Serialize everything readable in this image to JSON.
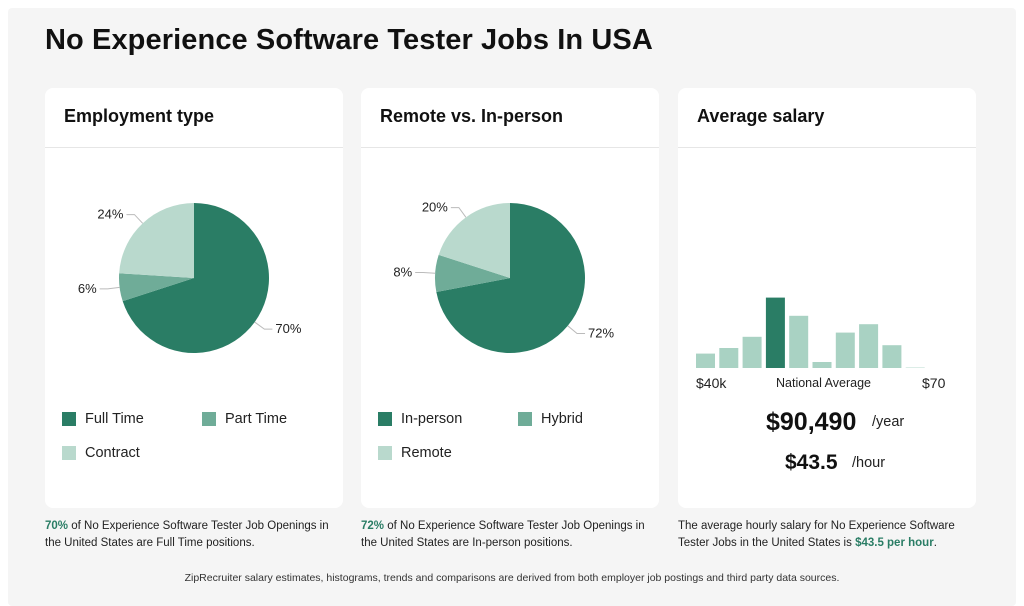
{
  "page": {
    "title": "No Experience Software Tester Jobs In USA",
    "footer": "ZipRecruiter salary estimates, histograms, trends and comparisons are derived from both employer job postings and third party data sources."
  },
  "colors": {
    "dark_green": "#2a7d65",
    "mid_green": "#6fac98",
    "light_green": "#b9d9cd",
    "histogram_bar": "#a9d2c3"
  },
  "employment": {
    "heading": "Employment type",
    "legend": [
      "Full Time",
      "Part Time",
      "Contract"
    ],
    "desc_highlight": "70%",
    "desc_text": " of No Experience Software Tester Job Openings in the United States are Full Time positions."
  },
  "remote": {
    "heading": "Remote vs. In-person",
    "legend": [
      "In-person",
      "Hybrid",
      "Remote"
    ],
    "desc_highlight": "72%",
    "desc_text": " of No Experience Software Tester Job Openings in the United States are In-person positions."
  },
  "salary": {
    "heading": "Average salary",
    "axis_min": "$40k",
    "axis_mid": "National Average",
    "axis_max": "$70",
    "yearly": "$90,490",
    "yearly_unit": "/year",
    "hourly": "$43.5",
    "hourly_unit": "/hour",
    "desc_text": "The average hourly salary for No Experience Software Tester Jobs in the United States is ",
    "desc_highlight": "$43.5 per hour",
    "desc_end": "."
  },
  "chart_data": [
    {
      "type": "pie",
      "title": "Employment type",
      "categories": [
        "Full Time",
        "Part Time",
        "Contract"
      ],
      "values": [
        70,
        6,
        24
      ],
      "labels": [
        "70%",
        "6%",
        "24%"
      ]
    },
    {
      "type": "pie",
      "title": "Remote vs. In-person",
      "categories": [
        "In-person",
        "Hybrid",
        "Remote"
      ],
      "values": [
        72,
        8,
        20
      ],
      "labels": [
        "72%",
        "8%",
        "20%"
      ]
    },
    {
      "type": "bar",
      "title": "Average salary",
      "values": [
        0.26,
        0.3,
        0.38,
        0.66,
        0.53,
        0.2,
        0.41,
        0.47,
        0.32,
        0.16,
        0.06
      ],
      "highlight_index": 3,
      "x_range_labels": [
        "$40k",
        "$70"
      ]
    }
  ]
}
